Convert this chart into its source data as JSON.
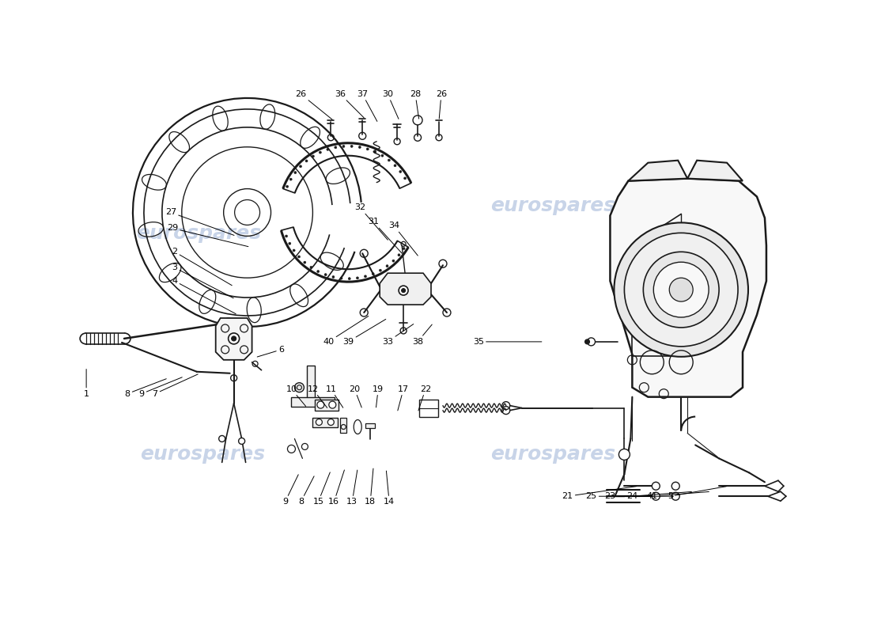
{
  "background_color": "#ffffff",
  "line_color": "#1a1a1a",
  "watermark_color": "#c8d4e8",
  "watermark_text": "eurospares",
  "fig_width": 11.0,
  "fig_height": 8.0,
  "dpi": 100,
  "labels": [
    [
      "26",
      380,
      118,
      422,
      152
    ],
    [
      "36",
      430,
      118,
      462,
      150
    ],
    [
      "37",
      458,
      118,
      478,
      155
    ],
    [
      "30",
      490,
      118,
      505,
      152
    ],
    [
      "28",
      525,
      118,
      530,
      152
    ],
    [
      "26",
      558,
      118,
      555,
      152
    ],
    [
      "27",
      215,
      268,
      298,
      298
    ],
    [
      "29",
      217,
      288,
      316,
      312
    ],
    [
      "2",
      220,
      318,
      295,
      362
    ],
    [
      "3",
      220,
      338,
      297,
      378
    ],
    [
      "4",
      220,
      355,
      300,
      398
    ],
    [
      "6",
      355,
      442,
      322,
      452
    ],
    [
      "32",
      455,
      262,
      492,
      305
    ],
    [
      "31",
      472,
      280,
      510,
      322
    ],
    [
      "34",
      498,
      285,
      530,
      325
    ],
    [
      "40",
      415,
      432,
      468,
      398
    ],
    [
      "39",
      440,
      432,
      490,
      402
    ],
    [
      "33",
      490,
      432,
      525,
      408
    ],
    [
      "38",
      528,
      432,
      548,
      408
    ],
    [
      "35",
      605,
      432,
      688,
      432
    ],
    [
      "1",
      108,
      498,
      108,
      464
    ],
    [
      "8",
      160,
      498,
      212,
      478
    ],
    [
      "9",
      178,
      498,
      232,
      476
    ],
    [
      "7",
      195,
      498,
      252,
      472
    ],
    [
      "10",
      368,
      492,
      388,
      516
    ],
    [
      "12",
      395,
      492,
      415,
      518
    ],
    [
      "11",
      418,
      492,
      435,
      518
    ],
    [
      "20",
      448,
      492,
      458,
      518
    ],
    [
      "19",
      478,
      492,
      475,
      518
    ],
    [
      "17",
      510,
      492,
      502,
      522
    ],
    [
      "22",
      538,
      492,
      528,
      522
    ],
    [
      "9",
      360,
      635,
      378,
      598
    ],
    [
      "8",
      380,
      635,
      398,
      600
    ],
    [
      "15",
      402,
      635,
      418,
      595
    ],
    [
      "16",
      422,
      635,
      436,
      592
    ],
    [
      "13",
      445,
      635,
      452,
      592
    ],
    [
      "18",
      468,
      635,
      472,
      590
    ],
    [
      "14",
      492,
      635,
      488,
      593
    ],
    [
      "21",
      718,
      628,
      808,
      615
    ],
    [
      "25",
      748,
      628,
      830,
      628
    ],
    [
      "23",
      772,
      628,
      855,
      628
    ],
    [
      "24",
      800,
      628,
      878,
      622
    ],
    [
      "41",
      825,
      628,
      900,
      622
    ],
    [
      "5",
      848,
      628,
      922,
      615
    ]
  ]
}
